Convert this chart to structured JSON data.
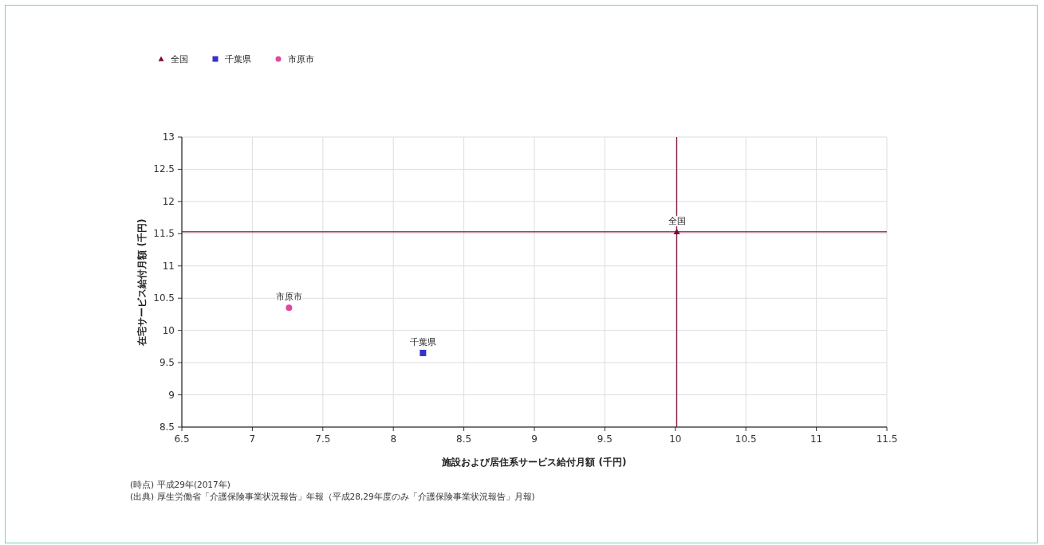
{
  "chart_data": {
    "type": "scatter",
    "xlabel": "施設および居住系サービス給付月額 (千円)",
    "ylabel": "在宅サービス給付月額 (千円)",
    "series": [
      {
        "name": "全国",
        "color": "#7a0c3a",
        "marker": "triangle",
        "x": [
          10.01
        ],
        "values": [
          11.53
        ]
      },
      {
        "name": "千葉県",
        "color": "#3333cc",
        "marker": "square",
        "x": [
          8.21
        ],
        "values": [
          9.65
        ]
      },
      {
        "name": "市原市",
        "color": "#e0479e",
        "marker": "circle",
        "x": [
          7.26
        ],
        "values": [
          10.35
        ]
      }
    ],
    "xlim": [
      6.5,
      11.5
    ],
    "xticks": [
      6.5,
      7,
      7.5,
      8,
      8.5,
      9,
      9.5,
      10,
      10.5,
      11,
      11.5
    ],
    "ylim": [
      8.5,
      13
    ],
    "yticks": [
      8.5,
      9,
      9.5,
      10,
      10.5,
      11,
      11.5,
      12,
      12.5,
      13
    ],
    "ref_lines": [
      {
        "axis": "x",
        "value": 10.01,
        "color": "#7a0c3a"
      },
      {
        "axis": "y",
        "value": 11.53,
        "color": "#7a0c3a"
      }
    ],
    "grid": true,
    "legend": "top left",
    "annotations": [
      "(時点) 平成29年(2017年)",
      "(出典) 厚生労働省「介護保険事業状況報告」年報（平成28,29年度のみ「介護保険事業状況報告」月報)"
    ]
  }
}
